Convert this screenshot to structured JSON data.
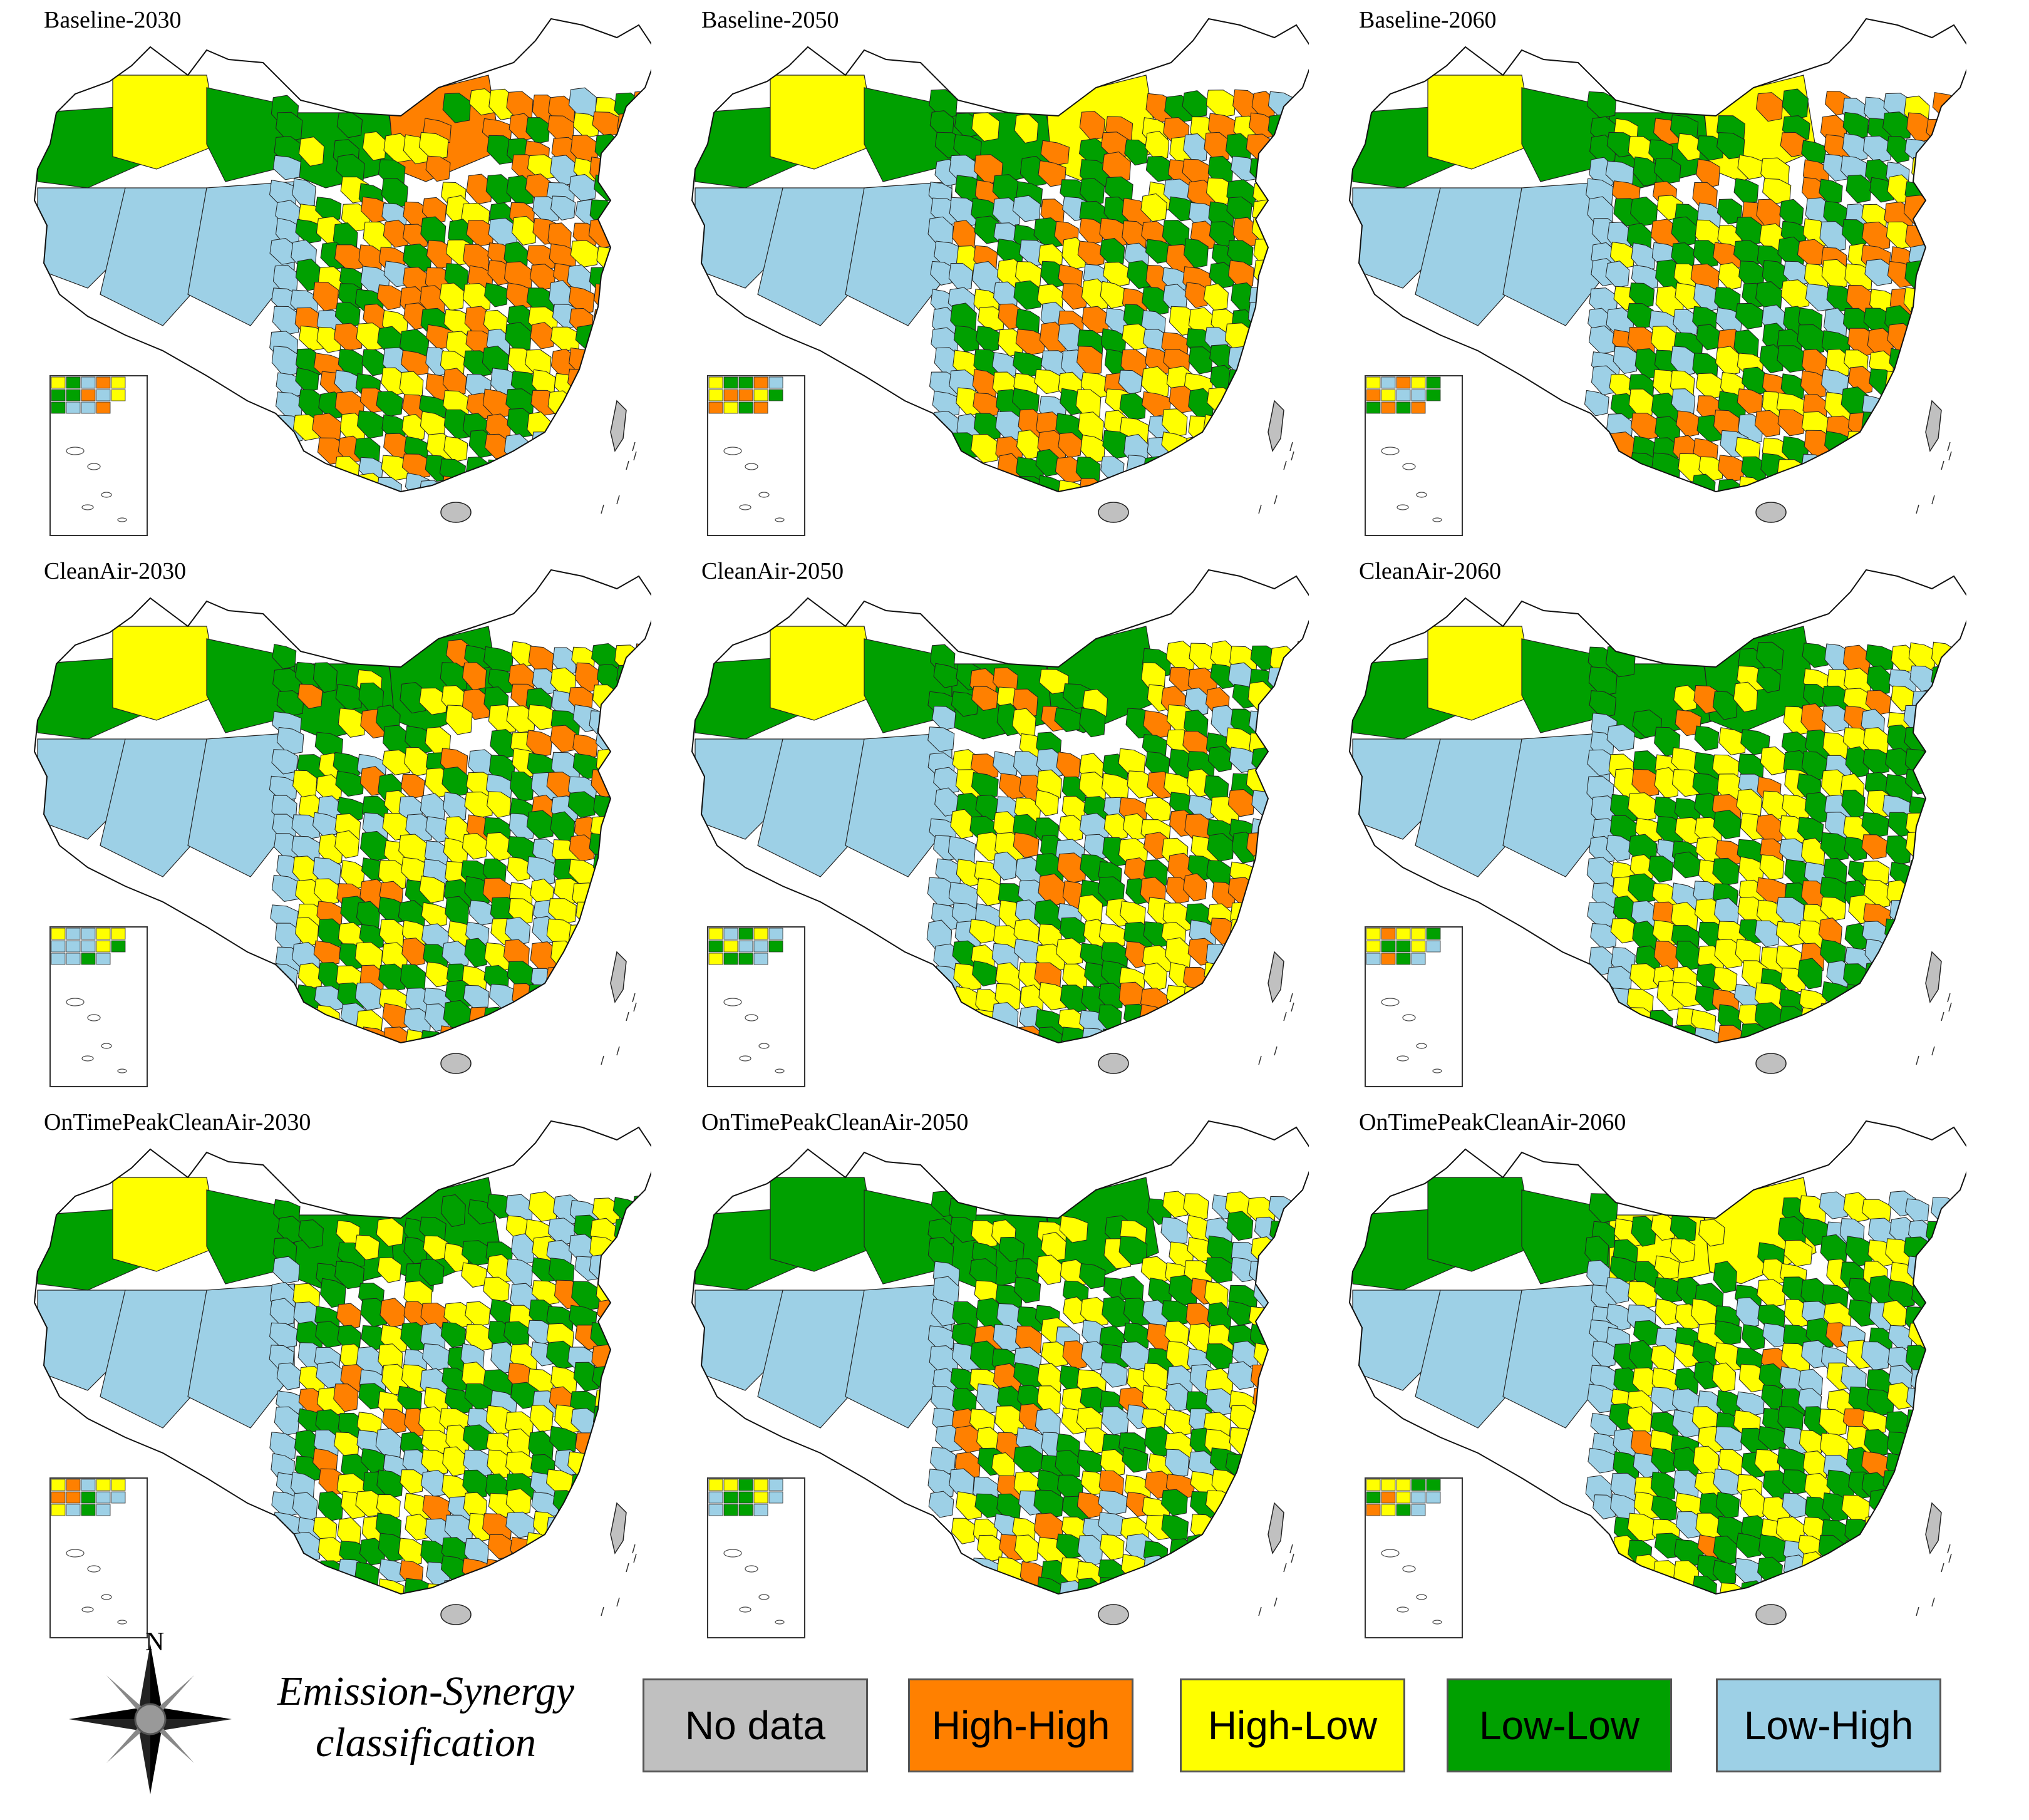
{
  "figure": {
    "panels": [
      {
        "title": "Baseline-2030",
        "scenario": "Baseline",
        "year": "2030"
      },
      {
        "title": "Baseline-2050",
        "scenario": "Baseline",
        "year": "2050"
      },
      {
        "title": "Baseline-2060",
        "scenario": "Baseline",
        "year": "2060"
      },
      {
        "title": "CleanAir-2030",
        "scenario": "CleanAir",
        "year": "2030"
      },
      {
        "title": "CleanAir-2050",
        "scenario": "CleanAir",
        "year": "2050"
      },
      {
        "title": "CleanAir-2060",
        "scenario": "CleanAir",
        "year": "2060"
      },
      {
        "title": "OnTimePeakCleanAir-2030",
        "scenario": "OnTimePeakCleanAir",
        "year": "2030"
      },
      {
        "title": "OnTimePeakCleanAir-2050",
        "scenario": "OnTimePeakCleanAir",
        "year": "2050"
      },
      {
        "title": "OnTimePeakCleanAir-2060",
        "scenario": "OnTimePeakCleanAir",
        "year": "2060"
      }
    ]
  },
  "legend": {
    "title_line1": "Emission-Synergy",
    "title_line2": "classification",
    "items": [
      {
        "label": "No data",
        "color": "#c0c0c0"
      },
      {
        "label": "High-High",
        "color": "#ff8000"
      },
      {
        "label": "High-Low",
        "color": "#ffff00"
      },
      {
        "label": "Low-Low",
        "color": "#00a000"
      },
      {
        "label": "Low-High",
        "color": "#9dd0e6"
      }
    ]
  },
  "compass": {
    "north_label": "N"
  }
}
